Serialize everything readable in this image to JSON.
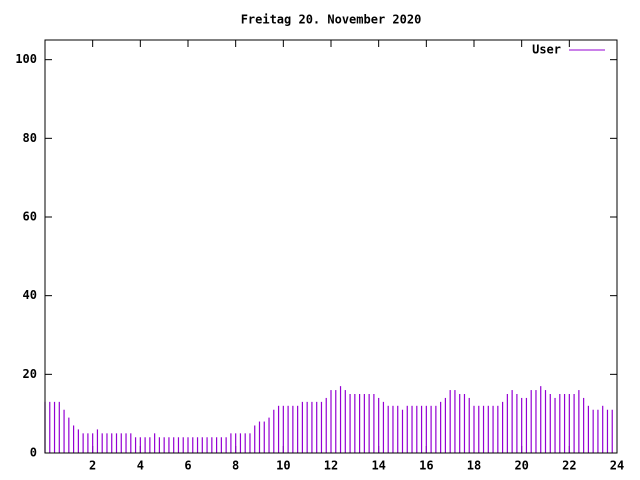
{
  "chart_data": {
    "type": "impulse",
    "title": "Freitag 20. November 2020",
    "xlim": [
      0,
      24
    ],
    "xticks": [
      2,
      4,
      6,
      8,
      10,
      12,
      14,
      16,
      18,
      20,
      22,
      24
    ],
    "ylim": [
      0,
      105
    ],
    "yticks": [
      0,
      20,
      40,
      60,
      80,
      100
    ],
    "legend": "top-right",
    "x": [
      0,
      0.2,
      0.4,
      0.6,
      0.8,
      1,
      1.2,
      1.4,
      1.6,
      1.8,
      2,
      2.2,
      2.4,
      2.6,
      2.8,
      3,
      3.2,
      3.4,
      3.6,
      3.8,
      4,
      4.2,
      4.4,
      4.6,
      4.8,
      5,
      5.2,
      5.4,
      5.6,
      5.8,
      6,
      6.2,
      6.4,
      6.6,
      6.8,
      7,
      7.2,
      7.4,
      7.6,
      7.8,
      8,
      8.2,
      8.4,
      8.6,
      8.8,
      9,
      9.2,
      9.4,
      9.6,
      9.8,
      10,
      10.2,
      10.4,
      10.6,
      10.8,
      11,
      11.2,
      11.4,
      11.6,
      11.8,
      12,
      12.2,
      12.4,
      12.6,
      12.8,
      13,
      13.2,
      13.4,
      13.6,
      13.8,
      14,
      14.2,
      14.4,
      14.6,
      14.8,
      15,
      15.2,
      15.4,
      15.6,
      15.8,
      16,
      16.2,
      16.4,
      16.6,
      16.8,
      17,
      17.2,
      17.4,
      17.6,
      17.8,
      18,
      18.2,
      18.4,
      18.6,
      18.8,
      19,
      19.2,
      19.4,
      19.6,
      19.8,
      20,
      20.2,
      20.4,
      20.6,
      20.8,
      21,
      21.2,
      21.4,
      21.6,
      21.8,
      22,
      22.2,
      22.4,
      22.6,
      22.8,
      23,
      23.2,
      23.4,
      23.6,
      23.8
    ],
    "series": [
      {
        "name": "User",
        "color": "#9400d3",
        "values": [
          13,
          13,
          13,
          13,
          11,
          9,
          7,
          6,
          5,
          5,
          5,
          6,
          5,
          5,
          5,
          5,
          5,
          5,
          5,
          4,
          4,
          4,
          4,
          5,
          4,
          4,
          4,
          4,
          4,
          4,
          4,
          4,
          4,
          4,
          4,
          4,
          4,
          4,
          4,
          5,
          5,
          5,
          5,
          5,
          7,
          8,
          8,
          9,
          11,
          12,
          12,
          12,
          12,
          12,
          13,
          13,
          13,
          13,
          13,
          14,
          16,
          16,
          17,
          16,
          15,
          15,
          15,
          15,
          15,
          15,
          14,
          13,
          12,
          12,
          12,
          11,
          12,
          12,
          12,
          12,
          12,
          12,
          12,
          13,
          14,
          16,
          16,
          15,
          15,
          14,
          12,
          12,
          12,
          12,
          12,
          12,
          13,
          15,
          16,
          15,
          14,
          14,
          16,
          16,
          17,
          16,
          15,
          14,
          15,
          15,
          15,
          15,
          16,
          14,
          12,
          11,
          11,
          12,
          11,
          11
        ]
      }
    ]
  }
}
